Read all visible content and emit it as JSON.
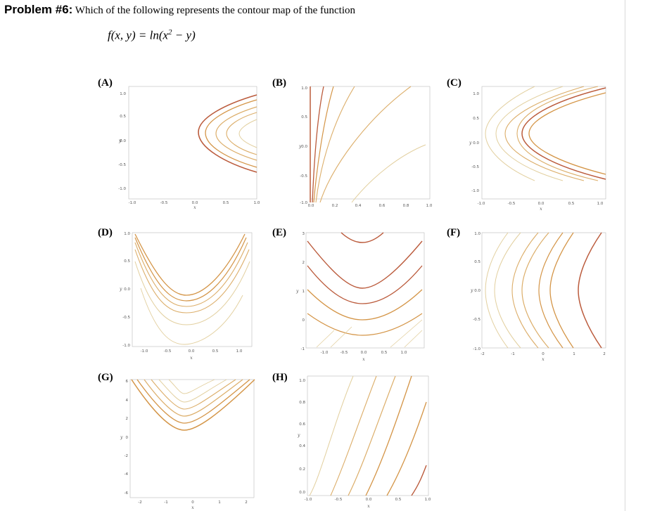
{
  "problem": {
    "label": "Problem #6:",
    "question": "Which of the following represents the contour map of the function",
    "function_lhs": "f(x, y) = ln(x",
    "function_exp": "2",
    "function_rhs": " − y)"
  },
  "palette": {
    "light": "#e2cf9e",
    "mid": "#dcae6a",
    "strong": "#d49547",
    "dark": "#bb5b3c"
  },
  "options": [
    {
      "label": "(A)",
      "xticks": [
        "-1.0",
        "-0.5",
        "0.0",
        "0.5",
        "1.0"
      ],
      "yticks": [
        "1.0",
        "0.5",
        "0.0",
        "-0.5",
        "-1.0"
      ],
      "xaxis": "x",
      "yaxis": "y"
    },
    {
      "label": "(B)",
      "xticks": [
        "0.0",
        "0.2",
        "0.4",
        "0.6",
        "0.8",
        "1.0"
      ],
      "yticks": [
        "1.0",
        "0.5",
        "0.0",
        "-0.5",
        "-1.0"
      ],
      "xaxis": "",
      "yaxis": "y"
    },
    {
      "label": "(C)",
      "xticks": [
        "-1.0",
        "-0.5",
        "0.0",
        "0.5",
        "1.0"
      ],
      "yticks": [
        "1.0",
        "0.5",
        "0.0",
        "-0.5",
        "-1.0"
      ],
      "xaxis": "x",
      "yaxis": "y"
    },
    {
      "label": "(D)",
      "xticks": [
        "-1.0",
        "-0.5",
        "0.0",
        "0.5",
        "1.0"
      ],
      "yticks": [
        "1.0",
        "0.5",
        "0.0",
        "-0.5",
        "-1.0"
      ],
      "xaxis": "x",
      "yaxis": "y"
    },
    {
      "label": "(E)",
      "xticks": [
        "-1.0",
        "-0.5",
        "0.0",
        "0.5",
        "1.0"
      ],
      "yticks": [
        "3",
        "2",
        "1",
        "0",
        "-1"
      ],
      "xaxis": "x",
      "yaxis": "y"
    },
    {
      "label": "(F)",
      "xticks": [
        "-2",
        "-1",
        "0",
        "1",
        "2"
      ],
      "yticks": [
        "1.0",
        "0.5",
        "0.0",
        "-0.5",
        "-1.0"
      ],
      "xaxis": "x",
      "yaxis": "y"
    },
    {
      "label": "(G)",
      "xticks": [
        "-2",
        "-1",
        "0",
        "1",
        "2"
      ],
      "yticks": [
        "6",
        "4",
        "2",
        "0",
        "-2",
        "-4",
        "-6"
      ],
      "xaxis": "x",
      "yaxis": "y"
    },
    {
      "label": "(H)",
      "xticks": [
        "-1.0",
        "-0.5",
        "0.0",
        "0.5",
        "1.0"
      ],
      "yticks": [
        "1.0",
        "0.8",
        "0.6",
        "0.4",
        "0.2",
        "0.0"
      ],
      "xaxis": "x",
      "yaxis": "y"
    }
  ]
}
